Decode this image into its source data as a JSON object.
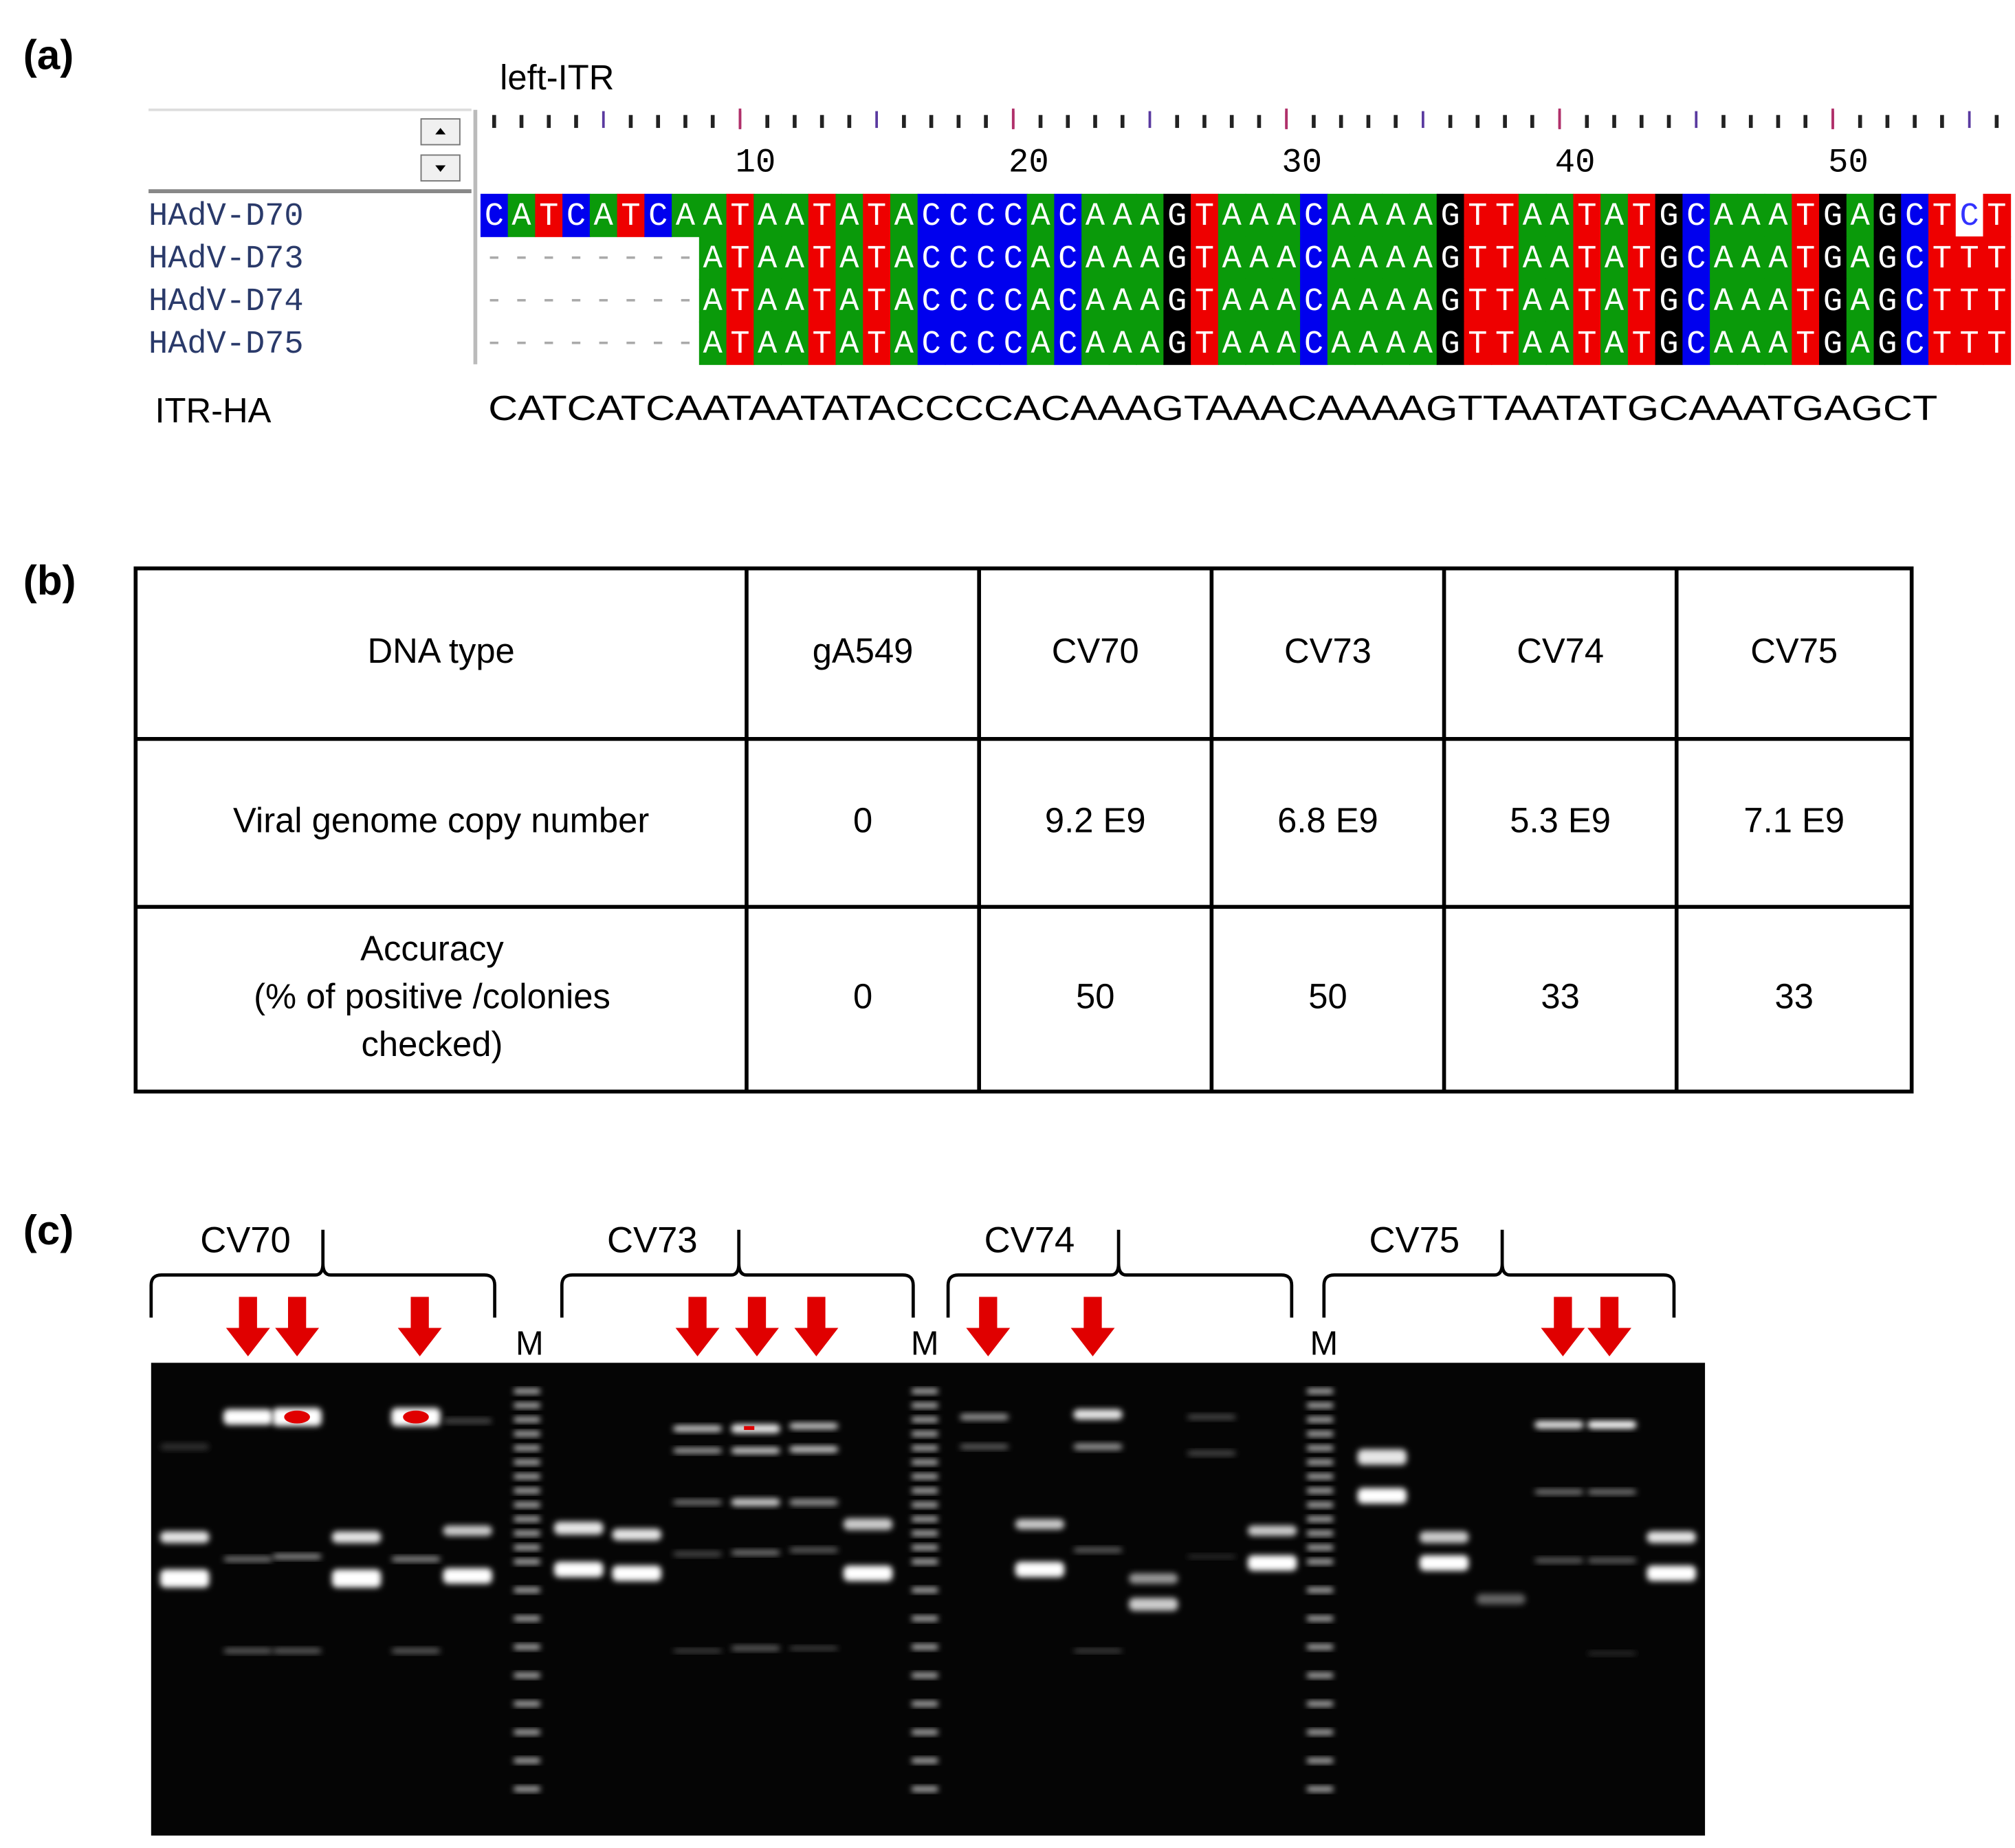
{
  "panel_labels": [
    "(a)",
    "(b)",
    "(c)"
  ],
  "alignment": {
    "region_label": "left-ITR",
    "ruler_ticks": [
      10,
      20,
      30,
      40,
      50
    ],
    "rows": [
      {
        "name": "HAdV-D70",
        "sequence": "CATCATCAATAATATACCCCACAAAGTAAACAAAAGTTAATATGCAAATGAGCTCT"
      },
      {
        "name": "HAdV-D73",
        "sequence": "--------ATAATATACCCCACAAAGTAAACAAAAGTTAATATGCAAATGAGCTTT"
      },
      {
        "name": "HAdV-D74",
        "sequence": "--------ATAATATACCCCACAAAGTAAACAAAAGTTAATATGCAAATGAGCTTT"
      },
      {
        "name": "HAdV-D75",
        "sequence": "--------ATAATATACCCCACAAAGTAAACAAAAGTTAATATGCAAATGAGCTTT"
      }
    ],
    "reference": {
      "name": "ITR-HA",
      "sequence": "CATCATCAATAATATACCCCACAAAGTAAACAAAAGTTAATATGCAAATGAGCT"
    }
  },
  "table": {
    "rows": [
      [
        "DNA type",
        "gA549",
        "CV70",
        "CV73",
        "CV74",
        "CV75"
      ],
      [
        "Viral genome copy number",
        "0",
        "9.2 E9",
        "6.8 E9",
        "5.3 E9",
        "7.1 E9"
      ],
      [
        [
          "Accuracy",
          "(%  of positive /colonies",
          "checked)"
        ],
        "0",
        "50",
        "50",
        "33",
        "33"
      ]
    ]
  },
  "gel": {
    "groups": [
      "CV70",
      "CV73",
      "CV74",
      "CV75"
    ],
    "marker_labels": [
      "M",
      "M",
      "M"
    ]
  }
}
